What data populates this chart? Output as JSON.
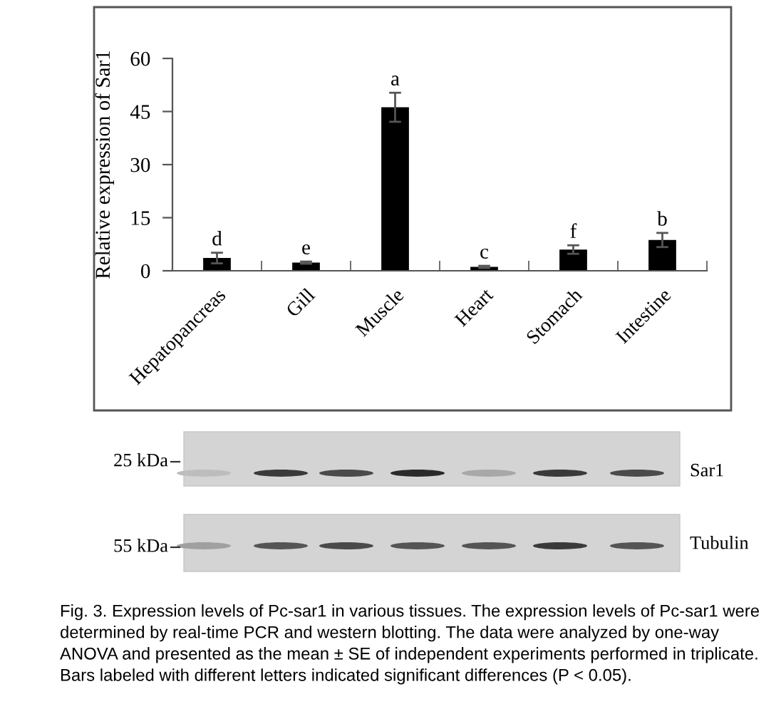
{
  "chart_data": {
    "type": "bar",
    "categories": [
      "Hepatopancreas",
      "Gill",
      "Muscle",
      "Heart",
      "Stomach",
      "Intestine"
    ],
    "values": [
      3.6,
      2.3,
      46.2,
      1.1,
      6.0,
      8.7
    ],
    "errors": [
      1.5,
      0.3,
      4.1,
      0.3,
      1.2,
      2.0
    ],
    "color": "#000000",
    "ylabel": "Relative expression of Sar1",
    "ylim": [
      0,
      60
    ],
    "yticks": [
      0,
      15,
      30,
      45,
      60
    ],
    "annotations": [
      {
        "text": "d",
        "x": "Hepatopancreas",
        "y": 5.1
      },
      {
        "text": "e",
        "x": "Gill",
        "y": 2.6
      },
      {
        "text": "a",
        "x": "Muscle",
        "y": 50.3
      },
      {
        "text": "c",
        "x": "Heart",
        "y": 1.4
      },
      {
        "text": "f",
        "x": "Stomach",
        "y": 7.2
      },
      {
        "text": "b",
        "x": "Intestine",
        "y": 10.7
      },
      "25 kDa",
      "Sar1",
      "55 kDa",
      "Tubulin",
      "Fig. 3. Expression levels of Pc-sar1 in various tissues. The expression levels of Pc-sar1 were determined by real-time PCR and western blotting. The data were analyzed by one-way ANOVA and presented as the mean ± SE of independent experiments performed in triplicate. Bars labeled with different letters indicated significant differences (P < 0.05)."
    ]
  }
}
